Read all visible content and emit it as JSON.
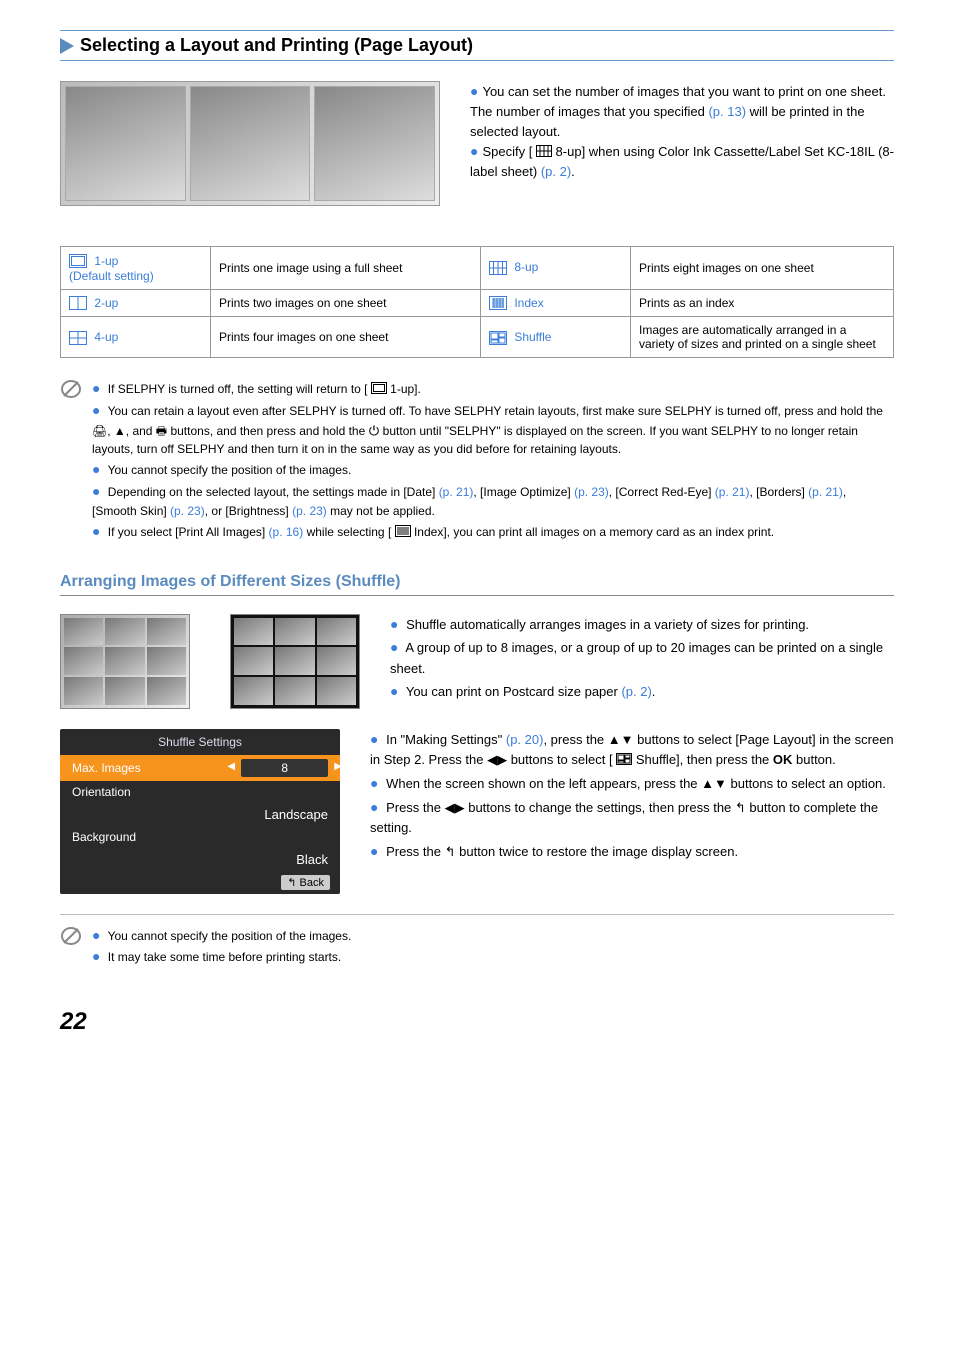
{
  "section": {
    "title": "Selecting a Layout and Printing (Page Layout)"
  },
  "intro": {
    "bullets": [
      {
        "pre": "You can set the number of images that you want to print on one sheet. The number of images that you specified ",
        "ref": "(p. 13)",
        "post": " will be printed in the selected layout."
      },
      {
        "pre": "Specify [ ",
        "icon": "8up",
        "mid": " 8-up] when using Color Ink Cassette/Label Set KC-18IL (8-label sheet) ",
        "ref": "(p. 2)",
        "post": "."
      }
    ]
  },
  "table": {
    "rows": [
      {
        "l_icon": "1up",
        "l_label": " 1-up\n(Default setting)",
        "l_desc": "Prints one image using a full sheet",
        "r_icon": "8up",
        "r_label": " 8-up",
        "r_desc": "Prints eight images on one sheet"
      },
      {
        "l_icon": "2up",
        "l_label": " 2-up",
        "l_desc": "Prints two images on one sheet",
        "r_icon": "index",
        "r_label": " Index",
        "r_desc": "Prints as an index"
      },
      {
        "l_icon": "4up",
        "l_label": " 4-up",
        "l_desc": "Prints four images on one sheet",
        "r_icon": "shuffle",
        "r_label": " Shuffle",
        "r_desc": "Images are automatically arranged in a variety of sizes and printed on a single sheet"
      }
    ]
  },
  "notes1": [
    {
      "text": "If SELPHY is turned off, the setting will return to [ ",
      "icon": "1up",
      "tail": " 1-up]."
    },
    {
      "text": "You can retain a layout even after SELPHY is turned off. To have SELPHY retain layouts, first make sure SELPHY is turned off, press and hold the 🖨, ▲, and 🖶 buttons, and then press and hold the ⏻ button until \"SELPHY\" is displayed on the screen. If you want SELPHY to no longer retain layouts, turn off SELPHY and then turn it on in the same way as you did before for retaining layouts."
    },
    {
      "text": "You cannot specify the position of the images."
    },
    {
      "text_parts": [
        {
          "t": "Depending on the selected layout, the settings made in [Date] "
        },
        {
          "ref": "(p. 21)"
        },
        {
          "t": ", [Image Optimize] "
        },
        {
          "ref": "(p. 23)"
        },
        {
          "t": ", [Correct Red-Eye] "
        },
        {
          "ref": "(p. 21)"
        },
        {
          "t": ", [Borders] "
        },
        {
          "ref": "(p. 21)"
        },
        {
          "t": ", [Smooth Skin] "
        },
        {
          "ref": "(p. 23)"
        },
        {
          "t": ", or [Brightness] "
        },
        {
          "ref": "(p. 23)"
        },
        {
          "t": " may not be applied."
        }
      ]
    },
    {
      "text_parts": [
        {
          "t": "If you select [Print All Images] "
        },
        {
          "ref": "(p. 16)"
        },
        {
          "t": " while selecting [ "
        },
        {
          "icon": "index"
        },
        {
          "t": " Index], you can print all images on a memory card as an index print."
        }
      ]
    }
  ],
  "subheading": "Arranging Images of Different Sizes (Shuffle)",
  "shuffle_right": [
    "Shuffle automatically arranges images in a variety of sizes for printing.",
    "A group of up to 8 images, or a group of up to 20 images can be printed on a single sheet.",
    {
      "pre": "You can print on Postcard size paper ",
      "ref": "(p. 2)",
      "post": "."
    }
  ],
  "panel": {
    "title": "Shuffle Settings",
    "rows": [
      {
        "label": "Max. Images",
        "value": "8",
        "selected": true
      },
      {
        "label": "Orientation"
      },
      {
        "value_only": "Landscape"
      },
      {
        "label": "Background"
      },
      {
        "value_only": "Black"
      }
    ],
    "back": "Back"
  },
  "panel_instructions": [
    {
      "parts": [
        {
          "t": "In \"Making Settings\" "
        },
        {
          "ref": "(p. 20)"
        },
        {
          "t": ", press the "
        },
        {
          "g": "▲▼"
        },
        {
          "t": " buttons to select [Page Layout] in the screen in Step 2. Press the "
        },
        {
          "g": "◀▶"
        },
        {
          "t": " buttons to select [ "
        },
        {
          "icon": "shuffle"
        },
        {
          "t": " Shuffle], then press the "
        },
        {
          "ok": "OK"
        },
        {
          "t": " button."
        }
      ]
    },
    {
      "parts": [
        {
          "t": "When the screen shown on the left appears, press the "
        },
        {
          "g": "▲▼"
        },
        {
          "t": " buttons to select an option."
        }
      ]
    },
    {
      "parts": [
        {
          "t": "Press the "
        },
        {
          "g": "◀▶"
        },
        {
          "t": " buttons to change the settings, then press the "
        },
        {
          "g": "↰"
        },
        {
          "t": " button to complete the setting."
        }
      ]
    },
    {
      "parts": [
        {
          "t": "Press the "
        },
        {
          "g": "↰"
        },
        {
          "t": " button twice to restore the image display screen."
        }
      ]
    }
  ],
  "notes2": [
    "You cannot specify the position of the images.",
    "It may take some time before printing starts."
  ],
  "page": "22"
}
